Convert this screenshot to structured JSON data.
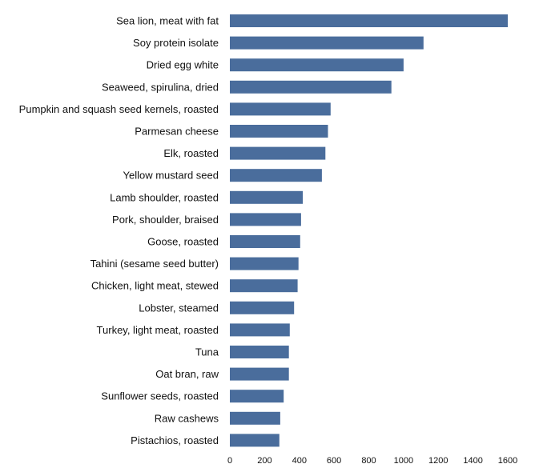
{
  "chart_data": {
    "type": "bar",
    "orientation": "horizontal",
    "title": "",
    "xlabel": "",
    "ylabel": "",
    "bar_color": "#4a6d9c",
    "xlim": [
      0,
      1600
    ],
    "xticks": [
      0,
      200,
      400,
      600,
      800,
      1000,
      1200,
      1400,
      1600
    ],
    "grid": false,
    "categories": [
      "Sea lion, meat with fat",
      "Soy protein isolate",
      "Dried egg white",
      "Seaweed, spirulina, dried",
      "Pumpkin and squash seed kernels, roasted",
      "Parmesan cheese",
      "Elk, roasted",
      "Yellow mustard seed",
      "Lamb shoulder, roasted",
      "Pork, shoulder, braised",
      "Goose, roasted",
      "Tahini (sesame seed butter)",
      "Chicken, light meat, stewed",
      "Lobster, steamed",
      "Turkey, light meat, roasted",
      "Tuna",
      "Oat bran, raw",
      "Sunflower seeds, roasted",
      "Raw cashews",
      "Pistachios, roasted"
    ],
    "values": [
      1600,
      1115,
      1000,
      930,
      580,
      565,
      550,
      530,
      420,
      410,
      405,
      395,
      390,
      370,
      345,
      340,
      340,
      310,
      290,
      285
    ]
  }
}
